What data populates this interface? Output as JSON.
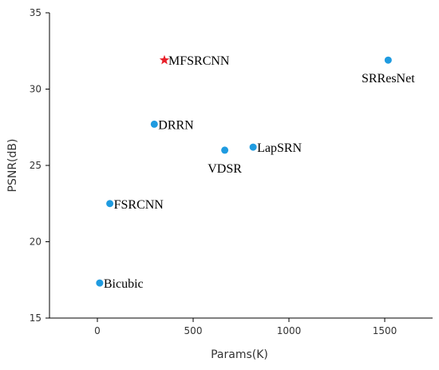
{
  "chart_data": {
    "type": "scatter",
    "xlabel": "Params(K)",
    "ylabel": "PSNR(dB)",
    "xlim": [
      -250,
      1750
    ],
    "ylim": [
      15,
      35
    ],
    "xticks": [
      0,
      500,
      1000,
      1500
    ],
    "yticks": [
      15,
      20,
      25,
      30,
      35
    ],
    "grid": false,
    "colors": {
      "point": "#1f9be0",
      "highlight": "#e8202a"
    },
    "points": [
      {
        "name": "Bicubic",
        "x": 12,
        "y": 17.3,
        "marker": "circle",
        "label_pos": "right"
      },
      {
        "name": "FSRCNN",
        "x": 65,
        "y": 22.5,
        "marker": "circle",
        "label_pos": "right"
      },
      {
        "name": "DRRN",
        "x": 297,
        "y": 27.7,
        "marker": "circle",
        "label_pos": "right"
      },
      {
        "name": "MFSRCNN",
        "x": 350,
        "y": 31.9,
        "marker": "star",
        "label_pos": "right"
      },
      {
        "name": "VDSR",
        "x": 665,
        "y": 26.0,
        "marker": "circle",
        "label_pos": "below"
      },
      {
        "name": "LapSRN",
        "x": 813,
        "y": 26.2,
        "marker": "circle",
        "label_pos": "right"
      },
      {
        "name": "SRResNet",
        "x": 1518,
        "y": 31.9,
        "marker": "circle",
        "label_pos": "below"
      }
    ]
  }
}
